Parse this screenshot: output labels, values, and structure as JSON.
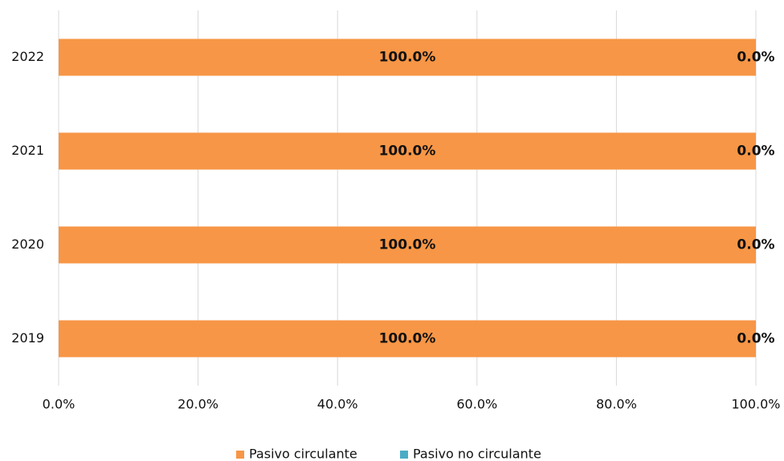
{
  "chart_data": {
    "type": "stacked-barh",
    "categories": [
      "2022",
      "2021",
      "2020",
      "2019"
    ],
    "series": [
      {
        "name": "Pasivo circulante",
        "color": "#f79646",
        "values": [
          100,
          100,
          100,
          100
        ],
        "value_labels": [
          "100.0%",
          "100.0%",
          "100.0%",
          "100.0%"
        ]
      },
      {
        "name": "Pasivo no circulante",
        "color": "#4bacc6",
        "values": [
          0,
          0,
          0,
          0
        ],
        "value_labels": [
          "0.0%",
          "0.0%",
          "0.0%",
          "0.0%"
        ]
      }
    ],
    "xlim": [
      0,
      100
    ],
    "xticks": [
      {
        "value": 0,
        "label": "0.0%"
      },
      {
        "value": 20,
        "label": "20.0%"
      },
      {
        "value": 40,
        "label": "40.0%"
      },
      {
        "value": 60,
        "label": "60.0%"
      },
      {
        "value": 80,
        "label": "80.0%"
      },
      {
        "value": 100,
        "label": "100.0%"
      }
    ],
    "grid": true,
    "legend": "bottom"
  }
}
